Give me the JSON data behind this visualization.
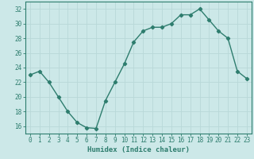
{
  "x": [
    0,
    1,
    2,
    3,
    4,
    5,
    6,
    7,
    8,
    9,
    10,
    11,
    12,
    13,
    14,
    15,
    16,
    17,
    18,
    19,
    20,
    21,
    22,
    23
  ],
  "y": [
    23,
    23.5,
    22,
    20,
    18,
    16.5,
    15.8,
    15.7,
    19.5,
    22,
    24.5,
    27.5,
    29,
    29.5,
    29.5,
    30,
    31.2,
    31.2,
    32,
    30.5,
    29,
    28,
    23.5,
    22.5
  ],
  "xlabel": "Humidex (Indice chaleur)",
  "ylim": [
    15.0,
    33.0
  ],
  "xlim": [
    -0.5,
    23.5
  ],
  "yticks": [
    16,
    18,
    20,
    22,
    24,
    26,
    28,
    30,
    32
  ],
  "xticks": [
    0,
    1,
    2,
    3,
    4,
    5,
    6,
    7,
    8,
    9,
    10,
    11,
    12,
    13,
    14,
    15,
    16,
    17,
    18,
    19,
    20,
    21,
    22,
    23
  ],
  "line_color": "#2e7d6e",
  "marker": "D",
  "marker_size": 2.2,
  "bg_color": "#cce8e8",
  "grid_color": "#b8d8d8",
  "tick_label_fontsize": 5.5,
  "xlabel_fontsize": 6.5,
  "line_width": 1.0
}
